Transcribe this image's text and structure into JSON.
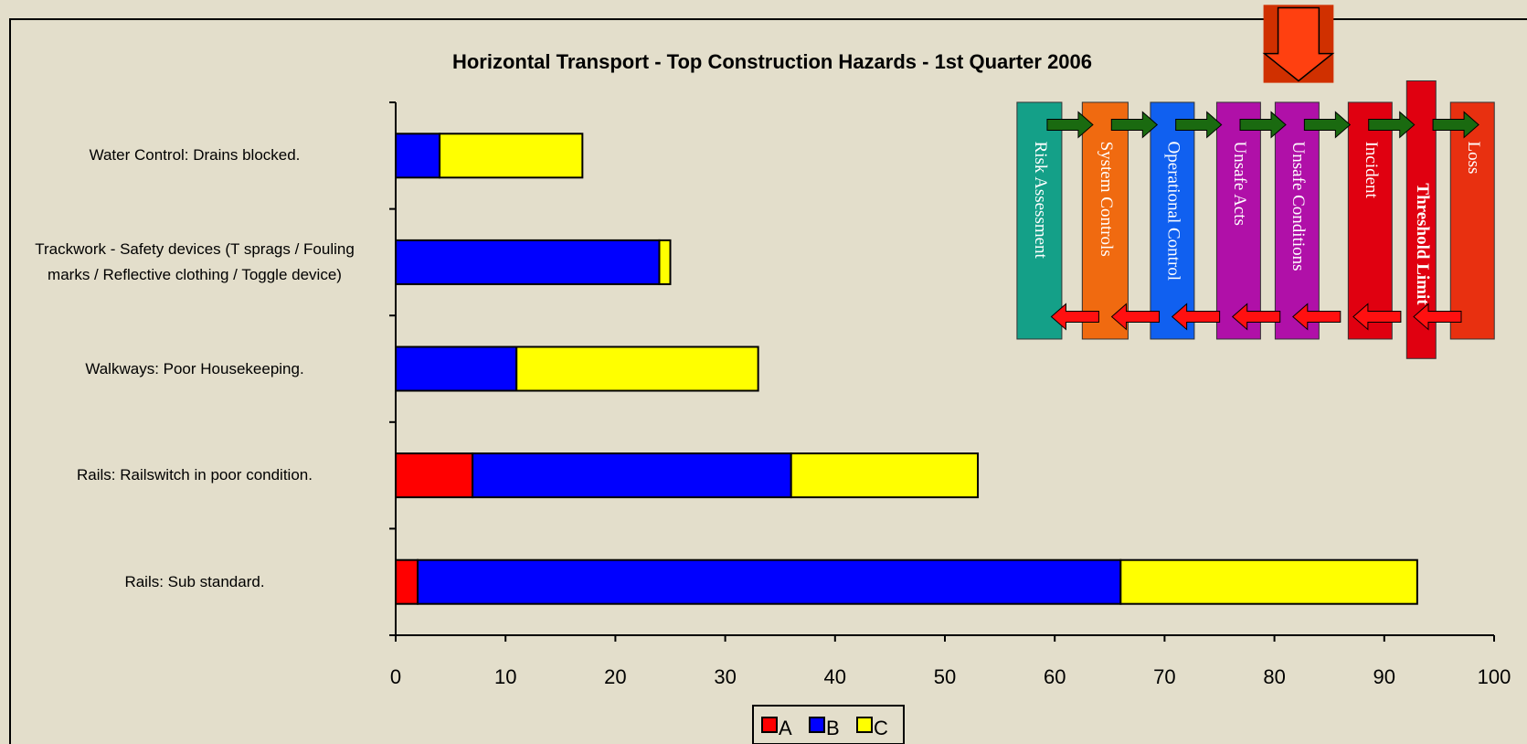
{
  "chart_data": {
    "type": "bar",
    "orientation": "horizontal",
    "stacked": true,
    "title": "Horizontal Transport - Top Construction Hazards - 1st Quarter 2006",
    "categories": [
      "Water Control: Drains blocked.",
      "Trackwork - Safety devices (T sprags / Fouling marks / Reflective clothing / Toggle device)",
      "Walkways: Poor Housekeeping.",
      "Rails: Railswitch in poor condition.",
      "Rails: Sub standard."
    ],
    "series": [
      {
        "name": "A",
        "color": "#ff0000",
        "values": [
          0,
          0,
          0,
          7,
          2
        ]
      },
      {
        "name": "B",
        "color": "#0000ff",
        "values": [
          4,
          24,
          11,
          29,
          64
        ]
      },
      {
        "name": "C",
        "color": "#ffff00",
        "values": [
          13,
          1,
          22,
          17,
          27
        ]
      }
    ],
    "xlim": [
      0,
      100
    ],
    "xticks": [
      0,
      10,
      20,
      30,
      40,
      50,
      60,
      70,
      80,
      90,
      100
    ],
    "legend": "bottom"
  },
  "diagram": {
    "labels": [
      "Risk Assessment",
      "System Controls",
      "Operational Control",
      "Unsafe Acts",
      "Unsafe Conditions",
      "Incident",
      "Threshold Limit",
      "Loss"
    ]
  }
}
